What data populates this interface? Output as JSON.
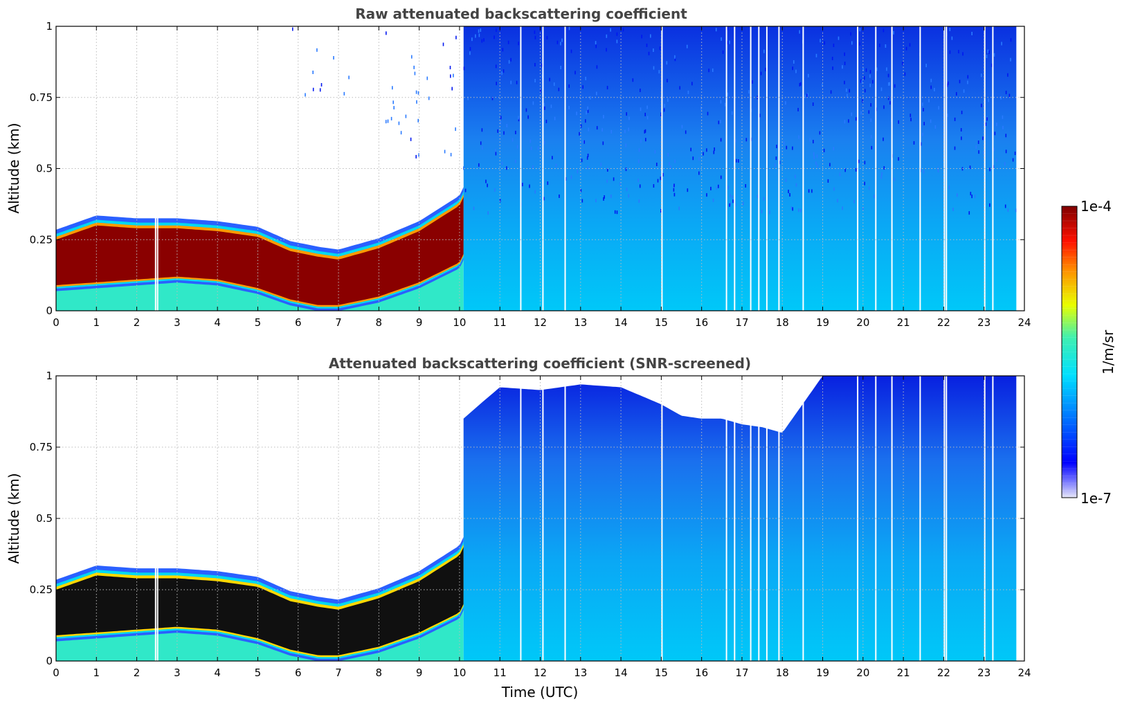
{
  "chart_data": [
    {
      "type": "heatmap",
      "title": "Raw attenuated backscattering coefficient",
      "xlabel": "",
      "ylabel": "Altitude (km)",
      "xlim": [
        0,
        24
      ],
      "ylim": [
        0,
        1
      ],
      "xticks": [
        "0",
        "1",
        "2",
        "3",
        "4",
        "5",
        "6",
        "7",
        "8",
        "9",
        "10",
        "11",
        "12",
        "13",
        "14",
        "15",
        "16",
        "17",
        "18",
        "19",
        "20",
        "21",
        "22",
        "23",
        "24"
      ],
      "yticks": [
        "0",
        "0.25",
        "0.5",
        "0.75",
        "1"
      ],
      "grid": true,
      "screened": false,
      "data_end_time": 23.8,
      "high_signal_layer": {
        "time": [
          0,
          1,
          2,
          3,
          4,
          5,
          5.8,
          6.5,
          7,
          8,
          9,
          10,
          10.1
        ],
        "bottom_km": [
          0.09,
          0.1,
          0.11,
          0.12,
          0.11,
          0.08,
          0.04,
          0.02,
          0.02,
          0.05,
          0.1,
          0.17,
          0.2
        ],
        "top_km": [
          0.25,
          0.3,
          0.29,
          0.29,
          0.28,
          0.26,
          0.21,
          0.19,
          0.18,
          0.22,
          0.28,
          0.37,
          0.4
        ]
      },
      "background_signal_start_time": 10.1,
      "missing_profile_times": [
        2.45,
        2.5,
        11.5,
        12.05,
        12.6,
        15.0,
        16.6,
        16.8,
        17.2,
        17.4,
        17.6,
        17.9,
        18.5,
        19.85,
        20.3,
        20.7,
        21.4,
        22.0,
        22.05,
        23.0,
        23.2
      ]
    },
    {
      "type": "heatmap",
      "title": "Attenuated backscattering coefficient (SNR-screened)",
      "xlabel": "Time (UTC)",
      "ylabel": "Altitude (km)",
      "xlim": [
        0,
        24
      ],
      "ylim": [
        0,
        1
      ],
      "xticks": [
        "0",
        "1",
        "2",
        "3",
        "4",
        "5",
        "6",
        "7",
        "8",
        "9",
        "10",
        "11",
        "12",
        "13",
        "14",
        "15",
        "16",
        "17",
        "18",
        "19",
        "20",
        "21",
        "22",
        "23",
        "24"
      ],
      "yticks": [
        "0",
        "0.25",
        "0.5",
        "0.75",
        "1"
      ],
      "grid": true,
      "screened": true,
      "data_end_time": 23.8,
      "high_signal_layer": {
        "time": [
          0,
          1,
          2,
          3,
          4,
          5,
          5.8,
          6.5,
          7,
          8,
          9,
          10,
          10.1
        ],
        "bottom_km": [
          0.09,
          0.1,
          0.11,
          0.12,
          0.11,
          0.08,
          0.04,
          0.02,
          0.02,
          0.05,
          0.1,
          0.17,
          0.2
        ],
        "top_km": [
          0.25,
          0.3,
          0.29,
          0.29,
          0.28,
          0.26,
          0.21,
          0.19,
          0.18,
          0.22,
          0.28,
          0.37,
          0.4
        ]
      },
      "screened_cutoff": {
        "time": [
          10.1,
          10.5,
          11,
          12,
          13,
          14,
          15,
          15.5,
          16,
          16.5,
          17,
          17.5,
          18,
          18.5,
          19,
          24
        ],
        "altitude_km": [
          0.85,
          0.9,
          0.96,
          0.95,
          0.97,
          0.96,
          0.9,
          0.86,
          0.85,
          0.85,
          0.83,
          0.82,
          0.8,
          0.9,
          1.0,
          1.0
        ]
      },
      "background_signal_start_time": 10.1,
      "missing_profile_times": [
        2.45,
        2.5,
        11.5,
        12.05,
        12.6,
        15.0,
        16.6,
        16.8,
        17.2,
        17.4,
        17.6,
        17.9,
        18.5,
        19.85,
        20.3,
        20.7,
        21.4,
        22.0,
        22.05,
        23.0,
        23.2
      ]
    }
  ],
  "colorbar": {
    "label": "1/m/sr",
    "max_label": "1e-4",
    "min_label": "1e-7",
    "scale": "log",
    "colormap": "jet"
  }
}
